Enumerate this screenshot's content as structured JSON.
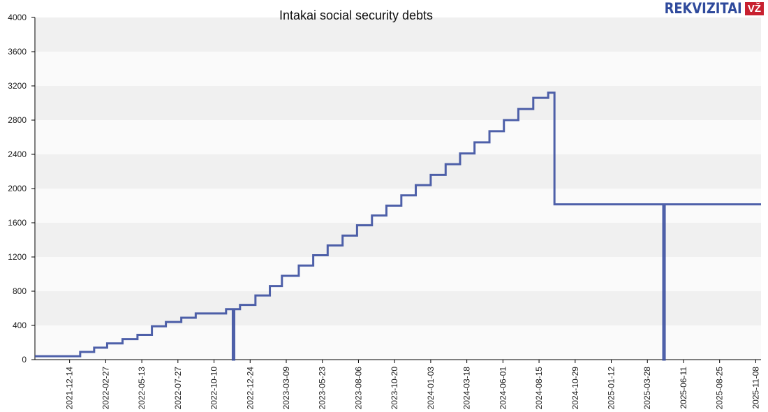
{
  "chart_data": {
    "type": "line",
    "step": true,
    "title": "Intakai social security debts",
    "xlabel": "",
    "ylabel": "",
    "ylim": [
      0,
      4000
    ],
    "yticks": [
      0,
      400,
      800,
      1200,
      1600,
      2000,
      2400,
      2800,
      3200,
      3600,
      4000
    ],
    "xlim": [
      "2021-10-03",
      "2025-11-19"
    ],
    "xticks": [
      "2021-12-14",
      "2022-02-27",
      "2022-05-13",
      "2022-07-27",
      "2022-10-10",
      "2022-12-24",
      "2023-03-09",
      "2023-05-23",
      "2023-08-06",
      "2023-10-20",
      "2024-01-03",
      "2024-03-18",
      "2024-06-01",
      "2024-08-15",
      "2024-10-29",
      "2025-01-12",
      "2025-03-28",
      "2025-06-11",
      "2025-08-25",
      "2025-11-08"
    ],
    "grid": "alternating horizontal bands",
    "legend": "none",
    "color": "#3b4fa0",
    "series": [
      {
        "name": "Intakai social security debts",
        "points": [
          [
            "2021-10-03",
            40
          ],
          [
            "2022-01-05",
            90
          ],
          [
            "2022-02-03",
            140
          ],
          [
            "2022-03-02",
            190
          ],
          [
            "2022-04-03",
            240
          ],
          [
            "2022-05-04",
            290
          ],
          [
            "2022-06-03",
            390
          ],
          [
            "2022-07-02",
            440
          ],
          [
            "2022-08-03",
            490
          ],
          [
            "2022-09-02",
            540
          ],
          [
            "2022-11-04",
            590
          ],
          [
            "2022-11-18",
            0
          ],
          [
            "2022-11-21",
            590
          ],
          [
            "2022-12-03",
            640
          ],
          [
            "2023-01-04",
            750
          ],
          [
            "2023-02-03",
            860
          ],
          [
            "2023-02-28",
            980
          ],
          [
            "2023-04-04",
            1100
          ],
          [
            "2023-05-04",
            1220
          ],
          [
            "2023-06-03",
            1335
          ],
          [
            "2023-07-04",
            1450
          ],
          [
            "2023-08-03",
            1570
          ],
          [
            "2023-09-03",
            1685
          ],
          [
            "2023-10-03",
            1800
          ],
          [
            "2023-11-03",
            1920
          ],
          [
            "2023-12-03",
            2040
          ],
          [
            "2024-01-03",
            2160
          ],
          [
            "2024-02-03",
            2285
          ],
          [
            "2024-03-04",
            2410
          ],
          [
            "2024-04-03",
            2540
          ],
          [
            "2024-05-04",
            2670
          ],
          [
            "2024-06-03",
            2800
          ],
          [
            "2024-07-03",
            2930
          ],
          [
            "2024-08-03",
            3060
          ],
          [
            "2024-09-03",
            3120
          ],
          [
            "2024-09-16",
            1815
          ],
          [
            "2025-04-30",
            0
          ],
          [
            "2025-05-03",
            1815
          ],
          [
            "2025-11-19",
            1815
          ]
        ]
      }
    ]
  },
  "logo": {
    "brand": "REKVIZITAI",
    "badge": "VŽ"
  }
}
